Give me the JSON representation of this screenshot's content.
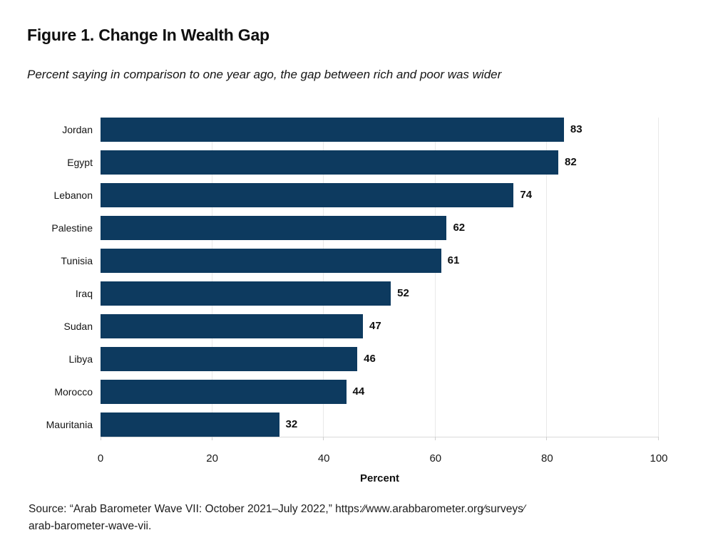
{
  "page": {
    "title": "Figure 1. Change In Wealth Gap",
    "subtitle": "Percent saying in comparison to one year ago, the gap between rich and poor was wider",
    "source_line1": "Source: “Arab Barometer Wave VII: October 2021–July 2022,” https:∕∕www.arabbarometer.org∕surveys∕",
    "source_line2": "arab-barometer-wave-vii."
  },
  "chart_data": {
    "type": "bar",
    "orientation": "horizontal",
    "title": "Figure 1. Change In Wealth Gap",
    "subtitle": "Percent saying in comparison to one year ago, the gap between rich and poor was wider",
    "categories": [
      "Jordan",
      "Egypt",
      "Lebanon",
      "Palestine",
      "Tunisia",
      "Iraq",
      "Sudan",
      "Libya",
      "Morocco",
      "Mauritania"
    ],
    "values": [
      83,
      82,
      74,
      62,
      61,
      52,
      47,
      46,
      44,
      32
    ],
    "xlabel": "Percent",
    "ylabel": "",
    "xlim": [
      0,
      100
    ],
    "xticks": [
      0,
      20,
      40,
      60,
      80,
      100
    ],
    "grid": "vertical",
    "legend": "none",
    "bar_color": "#0d3a5f",
    "gridline_color": "#e9e9e9",
    "tick_mark_color": "#cfcfcf",
    "axis_line_color": "#d9d9d9"
  }
}
